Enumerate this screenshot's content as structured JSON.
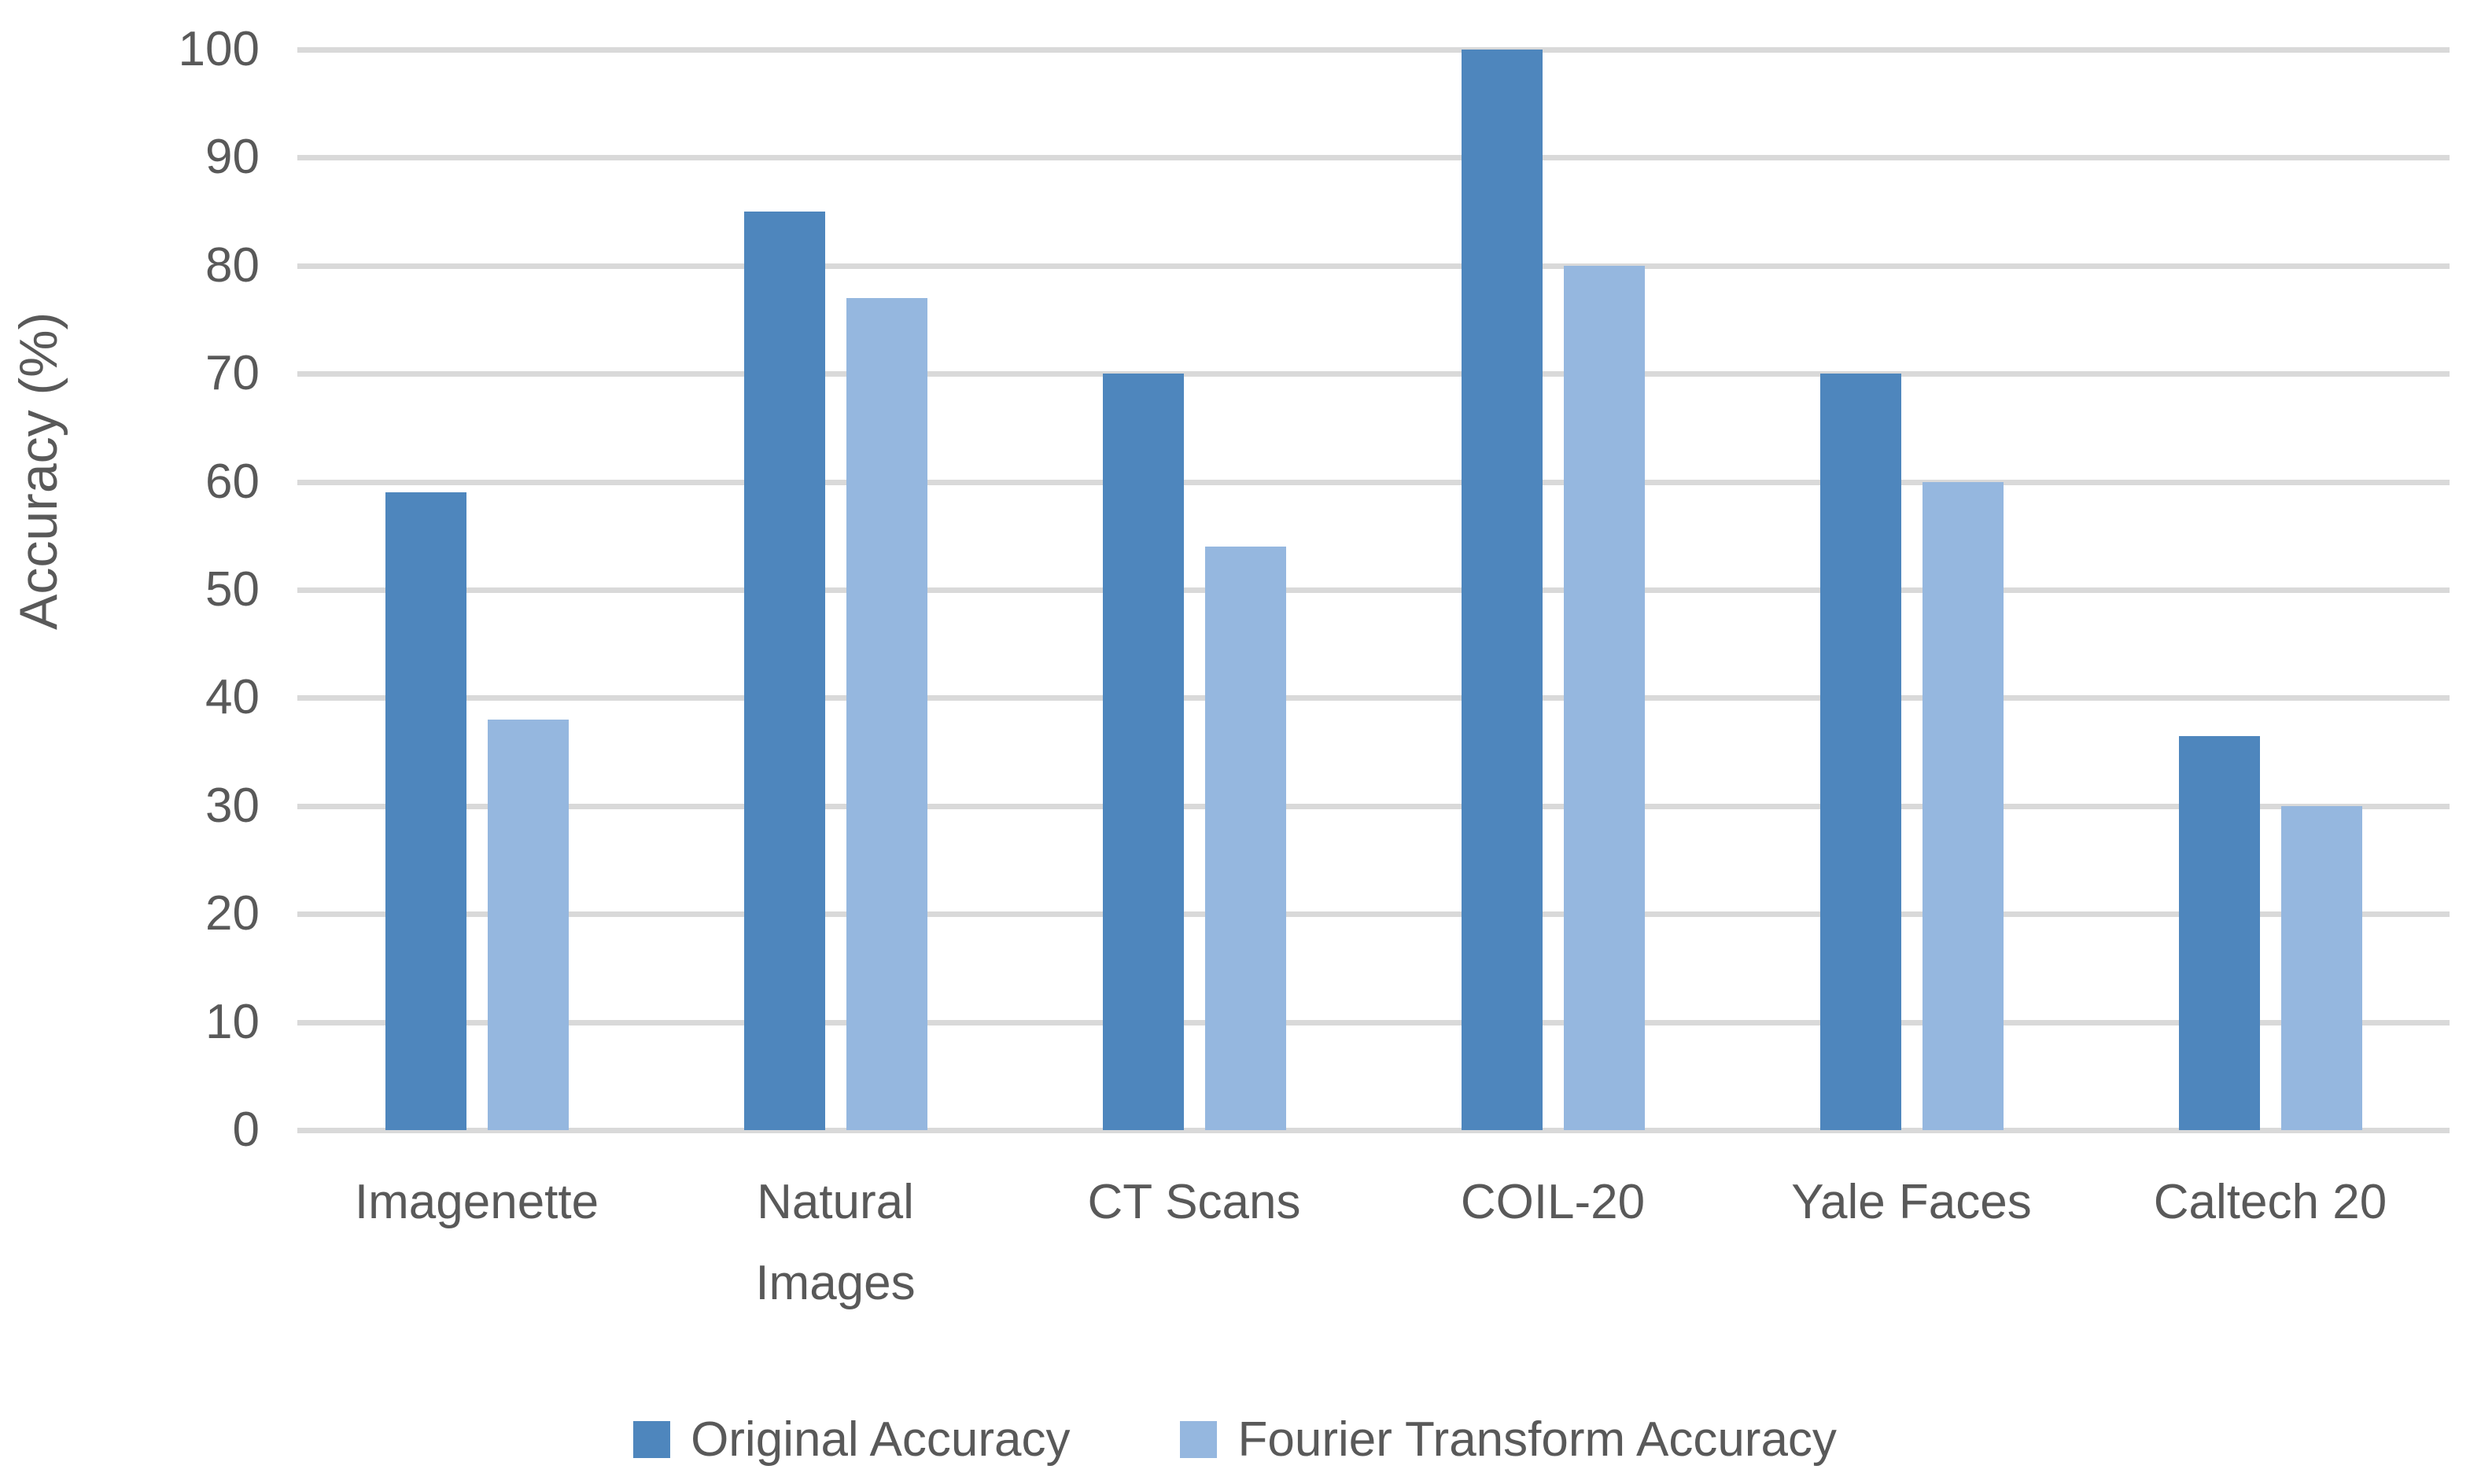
{
  "chart_data": {
    "type": "bar",
    "title": "",
    "categories": [
      "Imagenette",
      "Natural Images",
      "CT Scans",
      "COIL-20",
      "Yale Faces",
      "Caltech 20"
    ],
    "series": [
      {
        "name": "Original Accuracy",
        "color": "#4e86bd",
        "values": [
          59,
          85,
          70,
          100,
          70,
          36.5
        ]
      },
      {
        "name": "Fourier Transform Accuracy",
        "color": "#95b7df",
        "values": [
          38,
          77,
          54,
          80,
          60,
          30
        ]
      }
    ],
    "ylabel": "Accuracy (%)",
    "ylim": [
      0,
      100
    ],
    "yticks": [
      0,
      10,
      20,
      30,
      40,
      50,
      60,
      70,
      80,
      90,
      100
    ],
    "grid": "horizontal",
    "gridline_color": "#d9d9d9",
    "text_color": "#595959",
    "legend_position": "bottom",
    "legend_labels": [
      "Original Accuracy",
      "Fourier Transform Accuracy"
    ]
  }
}
